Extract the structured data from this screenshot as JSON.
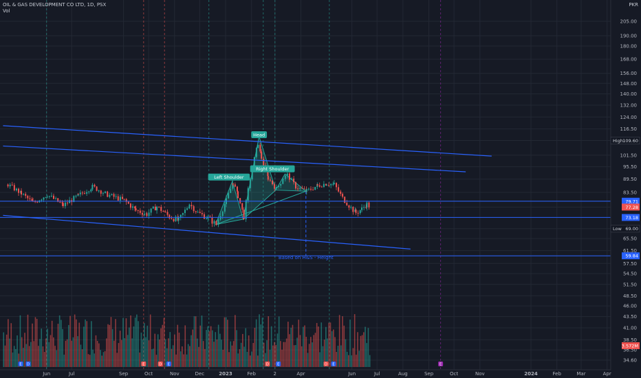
{
  "header": {
    "title": "OIL & GAS DEVELOPMENT CO LTD, 1D, PSX",
    "volume_label": "Vol",
    "currency": "PKR"
  },
  "colors": {
    "background": "#161a25",
    "grid": "#232834",
    "up": "#26a69a",
    "down": "#ef5350",
    "trendline": "#2962ff",
    "pattern_fill": "#26a69a",
    "text": "#b2b5be"
  },
  "chart_data": {
    "type": "candlestick",
    "title": "OIL & GAS DEVELOPMENT CO LTD, 1D, PSX",
    "y_scale": "log",
    "ylim": [
      34.6,
      230
    ],
    "y_ticks": [
      205.0,
      190.0,
      180.0,
      168.0,
      156.0,
      148.0,
      140.0,
      132.0,
      124.0,
      116.5,
      109.6,
      101.5,
      95.5,
      89.5,
      83.5,
      79.71,
      77.28,
      73.18,
      69.0,
      65.5,
      61.5,
      59.84,
      57.5,
      54.5,
      51.5,
      48.5,
      46.0,
      43.5,
      41.0,
      38.5,
      36.5,
      34.6
    ],
    "x_ticks": [
      "Jun",
      "Jul",
      "Sep",
      "Oct",
      "Nov",
      "Dec",
      "2023",
      "Feb",
      "2",
      "Apr",
      "Jun",
      "Jul",
      "Aug",
      "Sep",
      "Oct",
      "Nov",
      "2024",
      "Feb",
      "Mar",
      "Apr"
    ],
    "price_labels": [
      {
        "label": "High",
        "value": "109.60",
        "price": 109.6,
        "style": "outline"
      },
      {
        "label": "",
        "value": "79.71",
        "price": 79.71,
        "style": "blue"
      },
      {
        "label": "",
        "value": "77.28",
        "price": 77.28,
        "style": "red"
      },
      {
        "label": "",
        "value": "73.18",
        "price": 73.18,
        "style": "blue"
      },
      {
        "label": "Low",
        "value": "69.00",
        "price": 69.0,
        "style": "outline"
      },
      {
        "label": "",
        "value": "59.84",
        "price": 59.84,
        "style": "blue"
      }
    ],
    "volume_label": "3.572M",
    "horizontal_levels": [
      79.71,
      73.18,
      59.84
    ],
    "annotations": [
      {
        "text": "Head",
        "date": "2023-02-10",
        "price": 113.0
      },
      {
        "text": "Left Shoulder",
        "date": "2023-01-05",
        "price": 90.5
      },
      {
        "text": "Right Shoulder",
        "date": "2023-02-26",
        "price": 94.5
      },
      {
        "text": "Based on H&S - Height",
        "date": "2023-04-07",
        "price": 59.5
      }
    ],
    "trendlines": [
      {
        "from": [
          "2022-04-10",
          118.5
        ],
        "to": [
          "2023-11-15",
          101.0
        ]
      },
      {
        "from": [
          "2022-04-10",
          106.5
        ],
        "to": [
          "2023-10-15",
          93.0
        ]
      },
      {
        "from": [
          "2022-04-10",
          74.0
        ],
        "to": [
          "2023-08-10",
          62.0
        ]
      }
    ],
    "head_and_shoulders": {
      "points": [
        [
          "2022-12-20",
          70.5
        ],
        [
          "2023-01-09",
          88.5
        ],
        [
          "2023-01-22",
          72.5
        ],
        [
          "2023-02-10",
          112.0
        ],
        [
          "2023-03-02",
          84.5
        ],
        [
          "2023-03-13",
          92.0
        ],
        [
          "2023-04-07",
          84.0
        ]
      ],
      "neckline": [
        [
          "2022-12-20",
          70.5
        ],
        [
          "2023-04-07",
          84.0
        ]
      ],
      "projection": {
        "date": "2023-04-07",
        "from": 84.0,
        "to": 59.84
      }
    },
    "series": [
      {
        "date": "2022-04-15",
        "close": 87.0
      },
      {
        "date": "2022-05-01",
        "close": 83.0
      },
      {
        "date": "2022-05-15",
        "close": 79.0
      },
      {
        "date": "2022-06-01",
        "close": 82.5
      },
      {
        "date": "2022-06-20",
        "close": 78.0
      },
      {
        "date": "2022-07-08",
        "close": 82.0
      },
      {
        "date": "2022-07-25",
        "close": 86.0
      },
      {
        "date": "2022-08-12",
        "close": 82.5
      },
      {
        "date": "2022-09-01",
        "close": 80.0
      },
      {
        "date": "2022-09-15",
        "close": 76.0
      },
      {
        "date": "2022-09-28",
        "close": 74.5
      },
      {
        "date": "2022-10-10",
        "close": 77.5
      },
      {
        "date": "2022-10-25",
        "close": 73.5
      },
      {
        "date": "2022-11-05",
        "close": 72.0
      },
      {
        "date": "2022-11-18",
        "close": 78.5
      },
      {
        "date": "2022-11-28",
        "close": 75.0
      },
      {
        "date": "2022-12-10",
        "close": 73.0
      },
      {
        "date": "2022-12-20",
        "close": 70.5
      },
      {
        "date": "2023-01-01",
        "close": 80.0
      },
      {
        "date": "2023-01-09",
        "close": 88.0
      },
      {
        "date": "2023-01-15",
        "close": 82.0
      },
      {
        "date": "2023-01-22",
        "close": 73.5
      },
      {
        "date": "2023-02-01",
        "close": 95.0
      },
      {
        "date": "2023-02-08",
        "close": 108.0
      },
      {
        "date": "2023-02-12",
        "close": 100.0
      },
      {
        "date": "2023-02-20",
        "close": 90.0
      },
      {
        "date": "2023-03-02",
        "close": 85.0
      },
      {
        "date": "2023-03-10",
        "close": 90.0
      },
      {
        "date": "2023-03-15",
        "close": 91.5
      },
      {
        "date": "2023-03-25",
        "close": 86.0
      },
      {
        "date": "2023-04-07",
        "close": 84.0
      },
      {
        "date": "2023-04-20",
        "close": 86.5
      },
      {
        "date": "2023-05-01",
        "close": 87.5
      },
      {
        "date": "2023-05-10",
        "close": 87.0
      },
      {
        "date": "2023-05-20",
        "close": 81.0
      },
      {
        "date": "2023-05-30",
        "close": 77.0
      },
      {
        "date": "2023-06-05",
        "close": 75.0
      },
      {
        "date": "2023-06-12",
        "close": 76.5
      },
      {
        "date": "2023-06-18",
        "close": 78.5
      },
      {
        "date": "2023-06-22",
        "close": 77.28
      }
    ]
  }
}
